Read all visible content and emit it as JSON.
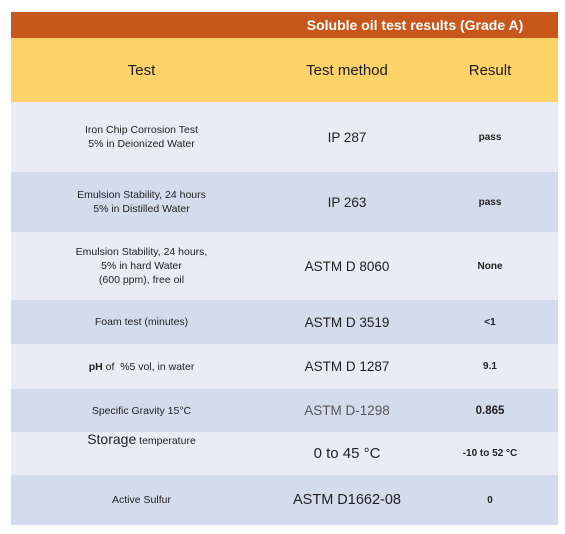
{
  "title": "Soluble oil test results  (Grade A)",
  "headers": {
    "test": "Test",
    "method": "Test method",
    "result": "Result"
  },
  "rows": [
    {
      "test_lines": [
        "Iron Chip Corrosion Test",
        "5% in Deionized Water"
      ],
      "method": "IP 287",
      "result": "pass"
    },
    {
      "test_lines": [
        "Emulsion Stability, 24 hours",
        "5% in Distilled Water"
      ],
      "method": "IP 263",
      "result": "pass"
    },
    {
      "test_lines": [
        "Emulsion Stability, 24 hours,",
        "5% in hard Water",
        "(600 ppm), free oil"
      ],
      "method": "ASTM D 8060",
      "result": "None"
    },
    {
      "test_lines": [
        "Foam test (minutes)"
      ],
      "method": "ASTM D 3519",
      "result": "<1"
    },
    {
      "test_bold": "pH",
      "test_rest": " of  %5 vol, in water",
      "method": "ASTM D 1287",
      "result": "9.1"
    },
    {
      "test_lines": [
        "Specific Gravity 15°C"
      ],
      "method": "ASTM D-1298",
      "result": "0.865"
    },
    {
      "test_big": "Storage",
      "test_rest": " temperature",
      "method": "0 to 45 °C",
      "result": "-10 to 52 °C"
    },
    {
      "test_lines": [
        "Active Sulfur"
      ],
      "method": "ASTM D1662-08",
      "result": "0"
    }
  ]
}
